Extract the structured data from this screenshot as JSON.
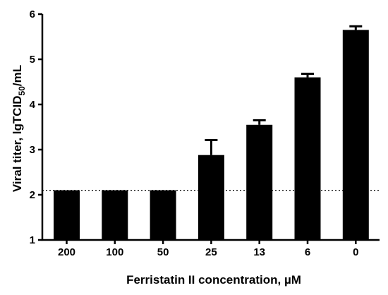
{
  "chart_data": {
    "type": "bar",
    "categories": [
      "200",
      "100",
      "50",
      "25",
      "13",
      "6",
      "0"
    ],
    "values": [
      2.1,
      2.1,
      2.1,
      2.88,
      3.55,
      4.6,
      5.65
    ],
    "errors": [
      0,
      0,
      0,
      0.33,
      0.1,
      0.08,
      0.08
    ],
    "xlabel": "Ferristatin II concentration, µM",
    "ylabel_prefix": "Viral titer, lgTCID",
    "ylabel_subscript": "50",
    "ylabel_suffix": "/mL",
    "ylim": [
      1,
      6
    ],
    "yticks": [
      "1",
      "2",
      "3",
      "4",
      "5",
      "6"
    ],
    "reference_line": 2.1,
    "bar_color": "#000000",
    "grid": false
  }
}
